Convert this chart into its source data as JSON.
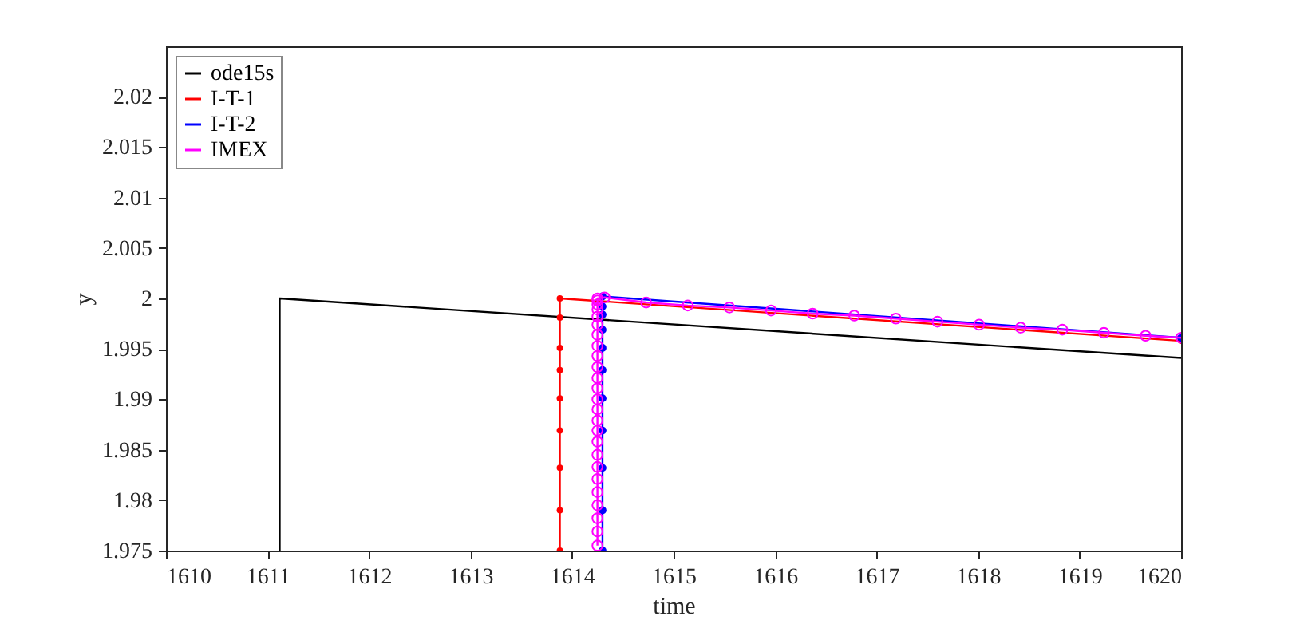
{
  "chart_data": {
    "type": "line",
    "xlabel": "time",
    "ylabel": "y",
    "xlim": [
      1610,
      1620
    ],
    "ylim": [
      1.975,
      2.025
    ],
    "xticks": [
      1610,
      1611,
      1612,
      1613,
      1614,
      1615,
      1616,
      1617,
      1618,
      1619,
      1620
    ],
    "yticks": [
      1.975,
      1.98,
      1.985,
      1.99,
      1.995,
      2,
      2.005,
      2.01,
      2.015,
      2.02
    ],
    "grid": false,
    "legend": "top left",
    "series": [
      {
        "name": "ode15s",
        "color": "#000000",
        "marker": "none",
        "x": [
          1611.12,
          1611.12,
          1620
        ],
        "values": [
          1.975,
          2.0,
          1.9941
        ]
      },
      {
        "name": "I-T-1",
        "color": "#ff0000",
        "marker": "circle",
        "x": [
          1613.88,
          1613.88,
          1613.88,
          1613.88,
          1613.88,
          1613.88,
          1613.88,
          1613.88,
          1613.88,
          1620
        ],
        "values": [
          1.975,
          1.979,
          1.9832,
          1.9869,
          1.9901,
          1.9929,
          1.9951,
          1.9981,
          2.0,
          1.9958
        ]
      },
      {
        "name": "I-T-2",
        "color": "#0000ff",
        "marker": "circle",
        "x": [
          1614.3,
          1614.3,
          1614.3,
          1614.3,
          1614.3,
          1614.3,
          1614.3,
          1614.3,
          1614.3,
          1614.3,
          1614.3,
          1620
        ],
        "values": [
          1.975,
          1.979,
          1.9832,
          1.9869,
          1.9901,
          1.9929,
          1.9951,
          1.9969,
          1.9984,
          1.9992,
          2.0002,
          1.9961
        ]
      },
      {
        "name": "IMEX",
        "color": "#ff00ff",
        "marker": "circle",
        "x": [
          1614.25,
          1614.25,
          1614.25,
          1614.25,
          1614.25,
          1614.25,
          1614.25,
          1614.25,
          1614.25,
          1614.25,
          1614.25,
          1614.25,
          1614.25,
          1614.25,
          1614.25,
          1614.25,
          1614.25,
          1614.25,
          1614.25,
          1614.25,
          1614.25,
          1614.25,
          1614.25,
          1614.25,
          1614.25,
          1614.32,
          1614.73,
          1615.14,
          1615.55,
          1615.96,
          1616.37,
          1616.78,
          1617.19,
          1617.6,
          1618.01,
          1618.42,
          1618.83,
          1619.24,
          1619.65,
          1620
        ],
        "values": [
          1.9755,
          1.9769,
          1.9782,
          1.9795,
          1.9808,
          1.9821,
          1.9833,
          1.9845,
          1.9858,
          1.9869,
          1.9879,
          1.989,
          1.99,
          1.9911,
          1.9921,
          1.9932,
          1.9943,
          1.9953,
          1.9964,
          1.9974,
          1.9982,
          1.9989,
          1.9994,
          1.9998,
          2.0,
          2.0001,
          1.9996,
          1.9993,
          1.9991,
          1.9988,
          1.9985,
          1.9983,
          1.998,
          1.9977,
          1.9974,
          1.9971,
          1.9969,
          1.9966,
          1.9963,
          1.9961
        ]
      }
    ]
  }
}
